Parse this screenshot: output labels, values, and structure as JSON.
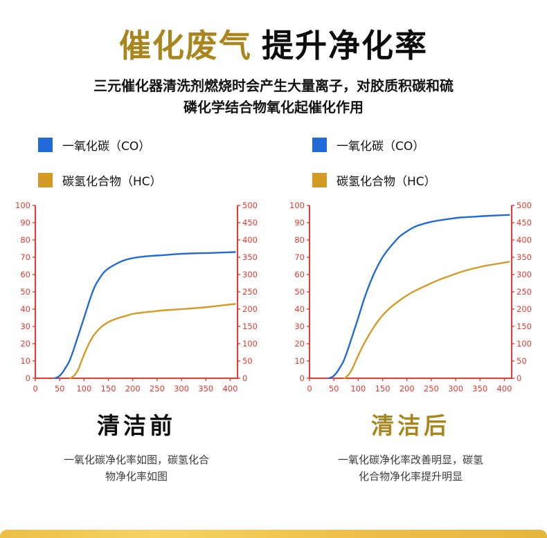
{
  "header": {
    "title_accent": "催化废气",
    "title_main": "提升净化率",
    "subtitle_line1": "三元催化器清洗剂燃烧时会产生大量离子，对胶质积碳和硫",
    "subtitle_line2": "磷化学结合物氧化起催化作用"
  },
  "legend": {
    "co_label": "一氧化碳（CO）",
    "hc_label": "碳氢化合物（HC）"
  },
  "colors": {
    "accent_gold": "#a8861d",
    "axis_red": "#e63a2e",
    "co_blue": "#2169d8",
    "hc_gold": "#d49a24",
    "bottom_bar_gold": "#f0c44b"
  },
  "panels": [
    {
      "heading": "清洁前",
      "caption_line1": "一氧化碳净化率如图，碳氢化合",
      "caption_line2": "物净化率如图"
    },
    {
      "heading": "清洁后",
      "caption_line1": "一氧化碳净化率改善明显，碳氢",
      "caption_line2": "化合物净化率提升明显"
    }
  ],
  "chart_data": [
    {
      "type": "line",
      "title": "清洁前",
      "x_range": [
        0,
        415
      ],
      "x_ticks": [
        0,
        50,
        100,
        150,
        200,
        250,
        300,
        350,
        400
      ],
      "left_axis": {
        "range": [
          0,
          100
        ],
        "ticks": [
          0,
          10,
          20,
          30,
          40,
          50,
          60,
          70,
          80,
          90,
          100
        ]
      },
      "right_axis": {
        "range": [
          0,
          500
        ],
        "ticks": [
          0,
          50,
          100,
          150,
          200,
          250,
          300,
          350,
          400,
          450,
          500
        ]
      },
      "grid": false,
      "legend_position": "top-left",
      "series": [
        {
          "name": "一氧化碳（CO）",
          "color": "#2169d8",
          "axis": "left",
          "points": [
            [
              40,
              0
            ],
            [
              48,
              1
            ],
            [
              55,
              3
            ],
            [
              62,
              6
            ],
            [
              70,
              10
            ],
            [
              78,
              16
            ],
            [
              85,
              22
            ],
            [
              92,
              28
            ],
            [
              100,
              35
            ],
            [
              108,
              42
            ],
            [
              115,
              48
            ],
            [
              122,
              53
            ],
            [
              130,
              57
            ],
            [
              140,
              61
            ],
            [
              150,
              63.5
            ],
            [
              165,
              66
            ],
            [
              180,
              68
            ],
            [
              200,
              69.5
            ],
            [
              225,
              70.5
            ],
            [
              250,
              71
            ],
            [
              275,
              71.5
            ],
            [
              300,
              72
            ],
            [
              330,
              72.3
            ],
            [
              360,
              72.5
            ],
            [
              410,
              73
            ]
          ]
        },
        {
          "name": "碳氢化合物（HC）",
          "color": "#d49a24",
          "axis": "right",
          "points": [
            [
              72,
              0
            ],
            [
              80,
              8
            ],
            [
              88,
              25
            ],
            [
              95,
              50
            ],
            [
              102,
              75
            ],
            [
              110,
              100
            ],
            [
              118,
              120
            ],
            [
              126,
              135
            ],
            [
              135,
              148
            ],
            [
              145,
              158
            ],
            [
              155,
              166
            ],
            [
              170,
              174
            ],
            [
              185,
              180
            ],
            [
              200,
              186
            ],
            [
              220,
              190
            ],
            [
              240,
              193
            ],
            [
              260,
              196
            ],
            [
              280,
              198
            ],
            [
              300,
              200
            ],
            [
              330,
              203
            ],
            [
              360,
              207
            ],
            [
              410,
              215
            ]
          ]
        }
      ]
    },
    {
      "type": "line",
      "title": "清洁后",
      "x_range": [
        0,
        415
      ],
      "x_ticks": [
        0,
        50,
        100,
        150,
        200,
        250,
        300,
        350,
        400
      ],
      "left_axis": {
        "range": [
          0,
          100
        ],
        "ticks": [
          0,
          10,
          20,
          30,
          40,
          50,
          60,
          70,
          80,
          90,
          100
        ]
      },
      "right_axis": {
        "range": [
          0,
          500
        ],
        "ticks": [
          0,
          50,
          100,
          150,
          200,
          250,
          300,
          350,
          400,
          450,
          500
        ]
      },
      "grid": false,
      "legend_position": "top-left",
      "series": [
        {
          "name": "一氧化碳（CO）",
          "color": "#2169d8",
          "axis": "left",
          "points": [
            [
              40,
              0
            ],
            [
              48,
              1
            ],
            [
              55,
              3
            ],
            [
              62,
              6
            ],
            [
              70,
              10
            ],
            [
              78,
              16
            ],
            [
              85,
              22
            ],
            [
              92,
              28
            ],
            [
              100,
              35
            ],
            [
              110,
              44
            ],
            [
              120,
              52
            ],
            [
              130,
              59
            ],
            [
              140,
              65
            ],
            [
              150,
              70
            ],
            [
              160,
              74
            ],
            [
              172,
              78
            ],
            [
              185,
              82
            ],
            [
              200,
              85
            ],
            [
              215,
              87.5
            ],
            [
              230,
              89
            ],
            [
              250,
              90.5
            ],
            [
              270,
              91.5
            ],
            [
              290,
              92.3
            ],
            [
              310,
              93
            ],
            [
              340,
              93.5
            ],
            [
              370,
              94
            ],
            [
              410,
              94.5
            ]
          ]
        },
        {
          "name": "碳氢化合物（HC）",
          "color": "#d49a24",
          "axis": "right",
          "points": [
            [
              72,
              0
            ],
            [
              80,
              10
            ],
            [
              88,
              28
            ],
            [
              95,
              50
            ],
            [
              103,
              75
            ],
            [
              112,
              100
            ],
            [
              122,
              125
            ],
            [
              132,
              148
            ],
            [
              142,
              168
            ],
            [
              152,
              185
            ],
            [
              165,
              203
            ],
            [
              180,
              220
            ],
            [
              195,
              235
            ],
            [
              210,
              248
            ],
            [
              230,
              262
            ],
            [
              250,
              275
            ],
            [
              270,
              287
            ],
            [
              290,
              297
            ],
            [
              310,
              307
            ],
            [
              335,
              317
            ],
            [
              360,
              325
            ],
            [
              385,
              331
            ],
            [
              410,
              337
            ]
          ]
        }
      ]
    }
  ]
}
